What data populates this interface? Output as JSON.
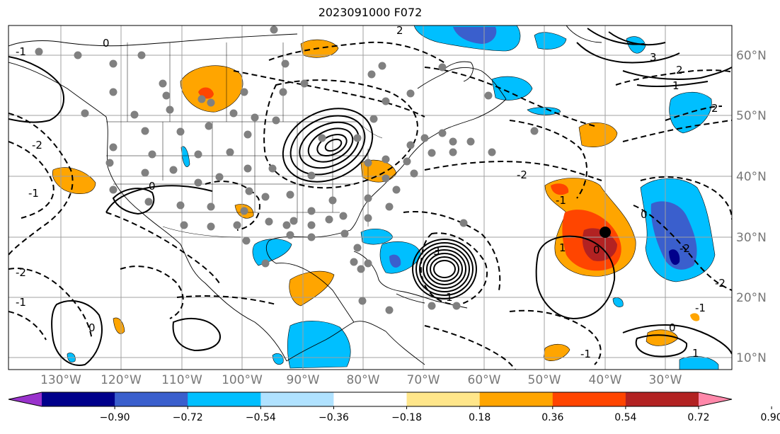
{
  "title": "2023091000 F072",
  "map": {
    "lat_labels": [
      "60°N",
      "50°N",
      "40°N",
      "30°N",
      "20°N",
      "10°N"
    ],
    "lon_labels": [
      "130°W",
      "120°W",
      "110°W",
      "100°W",
      "90°W",
      "80°W",
      "70°W",
      "60°W",
      "50°W",
      "40°W",
      "30°W"
    ],
    "contour_labels": [
      "-1",
      "0",
      "-2",
      "2",
      "3",
      "1",
      "-1",
      "0",
      "-2",
      "-1",
      "-2",
      "-1",
      "0",
      "-2",
      "1",
      "2",
      "3",
      "0",
      "2",
      "-1",
      "0",
      "1",
      "-2",
      "0",
      "-1",
      "1"
    ],
    "gridline_color": "#a0a0a0",
    "label_color": "#777777",
    "marker_color": "#808080",
    "center_marker_color": "#000000"
  },
  "colorbar": {
    "tick_labels": [
      "−0.90",
      "−0.72",
      "−0.54",
      "−0.36",
      "−0.18",
      "0.18",
      "0.36",
      "0.54",
      "0.72",
      "0.90"
    ],
    "colors": [
      "#9932cc",
      "#00008b",
      "#3a5fcd",
      "#00bfff",
      "#b0e2ff",
      "#ffffff",
      "#ffe68a",
      "#ffa500",
      "#ff4500",
      "#b22222",
      "#ff88aa"
    ]
  }
}
